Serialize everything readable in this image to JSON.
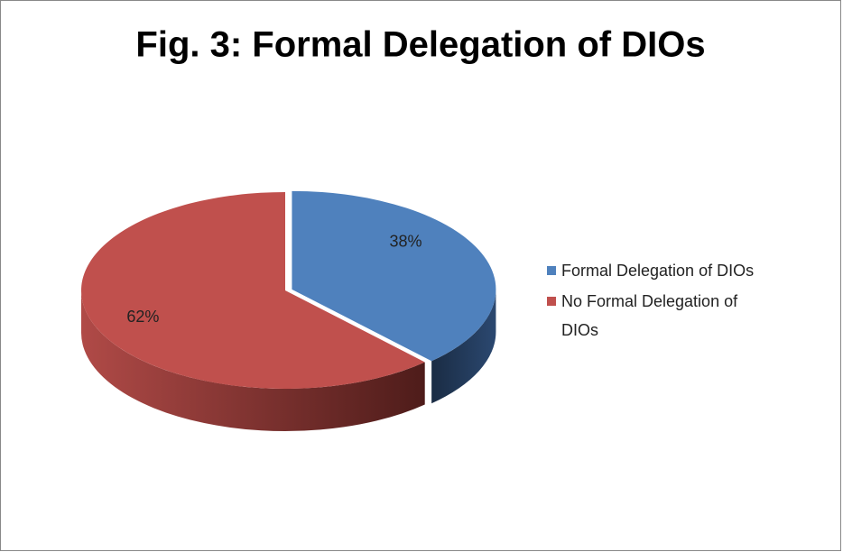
{
  "chart_data": {
    "type": "pie",
    "title": "Fig. 3: Formal Delegation of DIOs",
    "categories": [
      "Formal Delegation of DIOs",
      "No Formal Delegation of DIOs"
    ],
    "values": [
      38,
      62
    ],
    "value_labels": [
      "38%",
      "62%"
    ],
    "colors": [
      "#4f81bd",
      "#c0504d"
    ],
    "legend": "right"
  }
}
